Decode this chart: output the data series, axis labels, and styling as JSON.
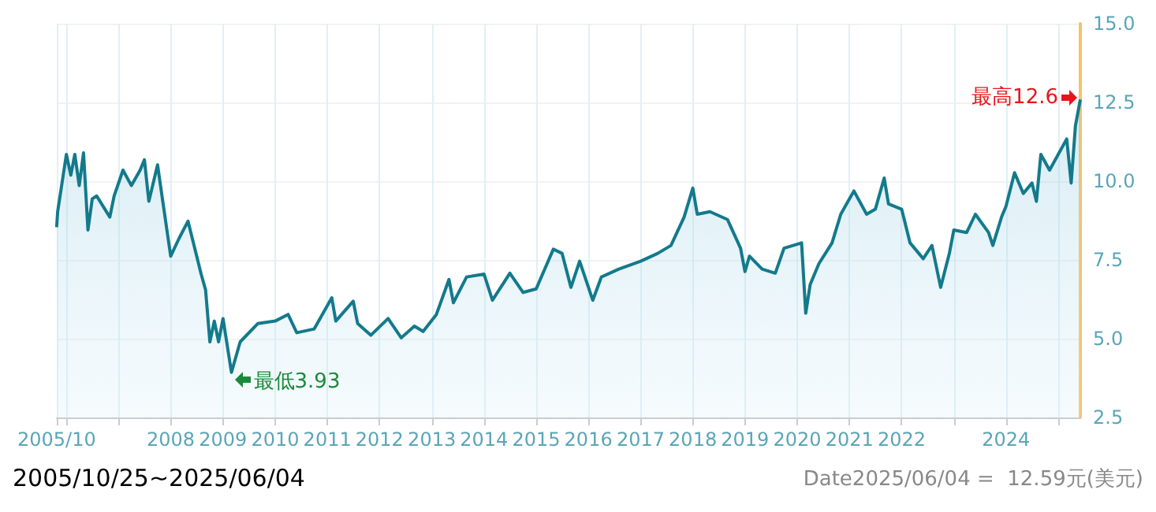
{
  "chart_data": {
    "type": "area",
    "annotations": [
      {
        "text": "最高12.6",
        "x": "2025-06-04",
        "y": 12.6
      },
      {
        "text": "最低3.93",
        "x": "2009-03",
        "y": 3.93
      },
      "2005/10/25~2025/06/04",
      "Date2025/06/04 =  12.59元(美元)"
    ],
    "x": [
      "2005-10-25",
      "2005-11",
      "2006-01",
      "2006-02",
      "2006-03",
      "2006-04",
      "2006-05",
      "2006-06",
      "2006-07",
      "2006-08",
      "2006-11",
      "2006-12",
      "2007-02",
      "2007-04",
      "2007-06",
      "2007-07",
      "2007-08",
      "2007-10",
      "2007-11",
      "2008-01",
      "2008-03",
      "2008-05",
      "2008-08",
      "2008-09",
      "2008-10",
      "2008-11",
      "2008-12",
      "2009-01",
      "2009-03",
      "2009-05",
      "2009-09",
      "2010-01",
      "2010-04",
      "2010-06",
      "2010-10",
      "2011-02",
      "2011-03",
      "2011-07",
      "2011-08",
      "2011-11",
      "2012-03",
      "2012-06",
      "2012-09",
      "2012-11",
      "2013-02",
      "2013-05",
      "2013-06",
      "2013-09",
      "2014-01",
      "2014-03",
      "2014-07",
      "2014-10",
      "2015-01",
      "2015-05",
      "2015-07",
      "2015-09",
      "2015-11",
      "2016-02",
      "2016-04",
      "2016-08",
      "2017-01",
      "2017-05",
      "2017-08",
      "2017-11",
      "2018-01",
      "2018-02",
      "2018-05",
      "2018-09",
      "2018-12",
      "2019-01",
      "2019-02",
      "2019-05",
      "2019-08",
      "2019-10",
      "2020-02",
      "2020-03",
      "2020-04",
      "2020-06",
      "2020-09",
      "2020-11",
      "2021-02",
      "2021-05",
      "2021-07",
      "2021-09",
      "2021-10",
      "2022-01",
      "2022-03",
      "2022-06",
      "2022-08",
      "2022-10",
      "2022-12",
      "2023-01",
      "2023-04",
      "2023-06",
      "2023-09",
      "2023-10",
      "2023-12",
      "2024-01",
      "2024-03",
      "2024-05",
      "2024-07",
      "2024-08",
      "2024-09",
      "2024-11",
      "2025-03",
      "2025-04",
      "2025-05",
      "2025-06-04"
    ],
    "series": [
      {
        "color": "#137a8c",
        "values": [
          8.54,
          9.03,
          10.85,
          10.19,
          10.85,
          9.86,
          10.9,
          8.45,
          9.44,
          9.53,
          8.86,
          9.53,
          10.35,
          9.86,
          10.35,
          10.68,
          9.36,
          10.52,
          9.53,
          7.62,
          8.2,
          8.73,
          7.05,
          6.55,
          4.9,
          5.56,
          4.9,
          5.64,
          3.93,
          4.9,
          5.48,
          5.56,
          5.77,
          5.19,
          5.31,
          6.3,
          5.56,
          6.19,
          5.48,
          5.11,
          5.64,
          5.03,
          5.4,
          5.23,
          5.76,
          6.88,
          6.14,
          6.96,
          7.05,
          6.22,
          7.08,
          6.47,
          6.58,
          7.84,
          7.71,
          6.63,
          7.46,
          6.22,
          6.96,
          7.21,
          7.46,
          7.71,
          7.96,
          8.86,
          9.78,
          8.95,
          9.03,
          8.78,
          7.87,
          7.13,
          7.62,
          7.21,
          7.08,
          7.87,
          8.04,
          5.81,
          6.72,
          7.38,
          8.04,
          8.95,
          9.69,
          8.95,
          9.11,
          10.1,
          9.28,
          9.11,
          8.04,
          7.54,
          7.96,
          6.63,
          7.71,
          8.45,
          8.37,
          8.95,
          8.37,
          7.96,
          8.86,
          9.2,
          10.27,
          9.61,
          9.94,
          9.36,
          10.85,
          10.35,
          11.34,
          9.94,
          11.76,
          12.59
        ]
      }
    ],
    "xlim": [
      "2005-10-25",
      "2025-06-04"
    ],
    "xticks": [
      {
        "value": "2005-10-25",
        "label": "2005/10"
      },
      {
        "value": "2006",
        "label": null
      },
      {
        "value": "2007",
        "label": null
      },
      {
        "value": "2008",
        "label": "2008"
      },
      {
        "value": "2009",
        "label": "2009"
      },
      {
        "value": "2010",
        "label": "2010"
      },
      {
        "value": "2011",
        "label": "2011"
      },
      {
        "value": "2012",
        "label": "2012"
      },
      {
        "value": "2013",
        "label": "2013"
      },
      {
        "value": "2014",
        "label": "2014"
      },
      {
        "value": "2015",
        "label": "2015"
      },
      {
        "value": "2016",
        "label": "2016"
      },
      {
        "value": "2017",
        "label": "2017"
      },
      {
        "value": "2018",
        "label": "2018"
      },
      {
        "value": "2019",
        "label": "2019"
      },
      {
        "value": "2020",
        "label": "2020"
      },
      {
        "value": "2021",
        "label": "2021"
      },
      {
        "value": "2022",
        "label": "2022"
      },
      {
        "value": "2023",
        "label": null
      },
      {
        "value": "2024",
        "label": "2024"
      },
      {
        "value": "2025",
        "label": null
      }
    ],
    "ylim": [
      2.5,
      15
    ],
    "yticks": [
      2.5,
      {
        "value": 5,
        "label": "5.0"
      },
      {
        "value": 7.5,
        "label": "7.5"
      },
      {
        "value": 10,
        "label": "10.0"
      },
      12.5,
      {
        "value": 15,
        "label": "15.0"
      }
    ],
    "grid": true,
    "marker": "none",
    "line_style": "solid"
  }
}
